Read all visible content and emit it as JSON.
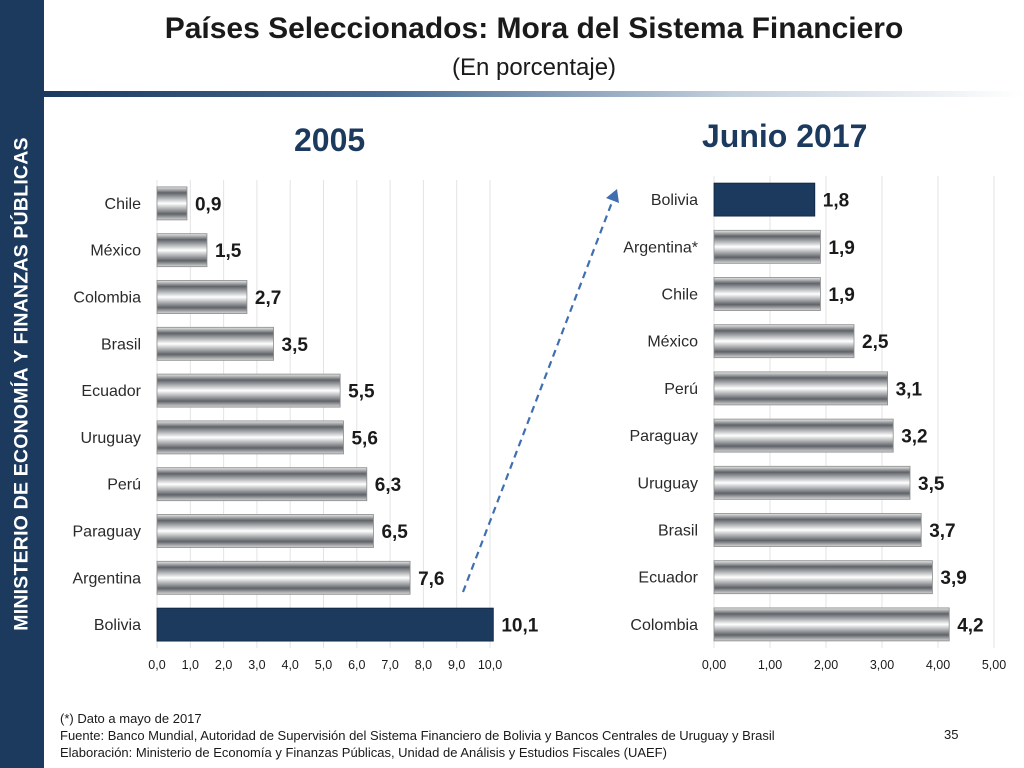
{
  "sidebar": {
    "text": "MINISTERIO DE ECONOMÍA Y FINANZAS PÚBLICAS"
  },
  "header": {
    "title": "Países Seleccionados: Mora del Sistema Financiero",
    "subtitle": "(En porcentaje)"
  },
  "colors": {
    "highlight_bar": "#1c3a5e",
    "arrow": "#3f6fb0",
    "sidebar": "#1c3a5e"
  },
  "chart_data": [
    {
      "type": "bar",
      "orientation": "horizontal",
      "title": "2005",
      "categories": [
        "Chile",
        "México",
        "Colombia",
        "Brasil",
        "Ecuador",
        "Uruguay",
        "Perú",
        "Paraguay",
        "Argentina",
        "Bolivia"
      ],
      "values": [
        0.9,
        1.5,
        2.7,
        3.5,
        5.5,
        5.6,
        6.3,
        6.5,
        7.6,
        10.1
      ],
      "value_labels": [
        "0,9",
        "1,5",
        "2,7",
        "3,5",
        "5,5",
        "5,6",
        "6,3",
        "6,5",
        "7,6",
        "10,1"
      ],
      "highlight": "Bolivia",
      "xlim": [
        0,
        10
      ],
      "xticks": [
        "0,0",
        "1,0",
        "2,0",
        "3,0",
        "4,0",
        "5,0",
        "6,0",
        "7,0",
        "8,0",
        "9,0",
        "10,0"
      ],
      "grid": true
    },
    {
      "type": "bar",
      "orientation": "horizontal",
      "title": "Junio 2017",
      "categories": [
        "Bolivia",
        "Argentina*",
        "Chile",
        "México",
        "Perú",
        "Paraguay",
        "Uruguay",
        "Brasil",
        "Ecuador",
        "Colombia"
      ],
      "values": [
        1.8,
        1.9,
        1.9,
        2.5,
        3.1,
        3.2,
        3.5,
        3.7,
        3.9,
        4.2
      ],
      "value_labels": [
        "1,8",
        "1,9",
        "1,9",
        "2,5",
        "3,1",
        "3,2",
        "3,5",
        "3,7",
        "3,9",
        "4,2"
      ],
      "highlight": "Bolivia",
      "xlim": [
        0,
        5
      ],
      "xticks": [
        "0,00",
        "1,00",
        "2,00",
        "3,00",
        "4,00",
        "5,00"
      ],
      "grid": true
    }
  ],
  "footer": {
    "note": "(*) Dato a mayo de 2017",
    "source": "Fuente: Banco Mundial, Autoridad de Supervisión del Sistema Financiero de Bolivia y Bancos Centrales de Uruguay y Brasil",
    "elaboration": "Elaboración: Ministerio de Economía y Finanzas Públicas, Unidad de Análisis y Estudios Fiscales (UAEF)"
  },
  "page_number": "35"
}
